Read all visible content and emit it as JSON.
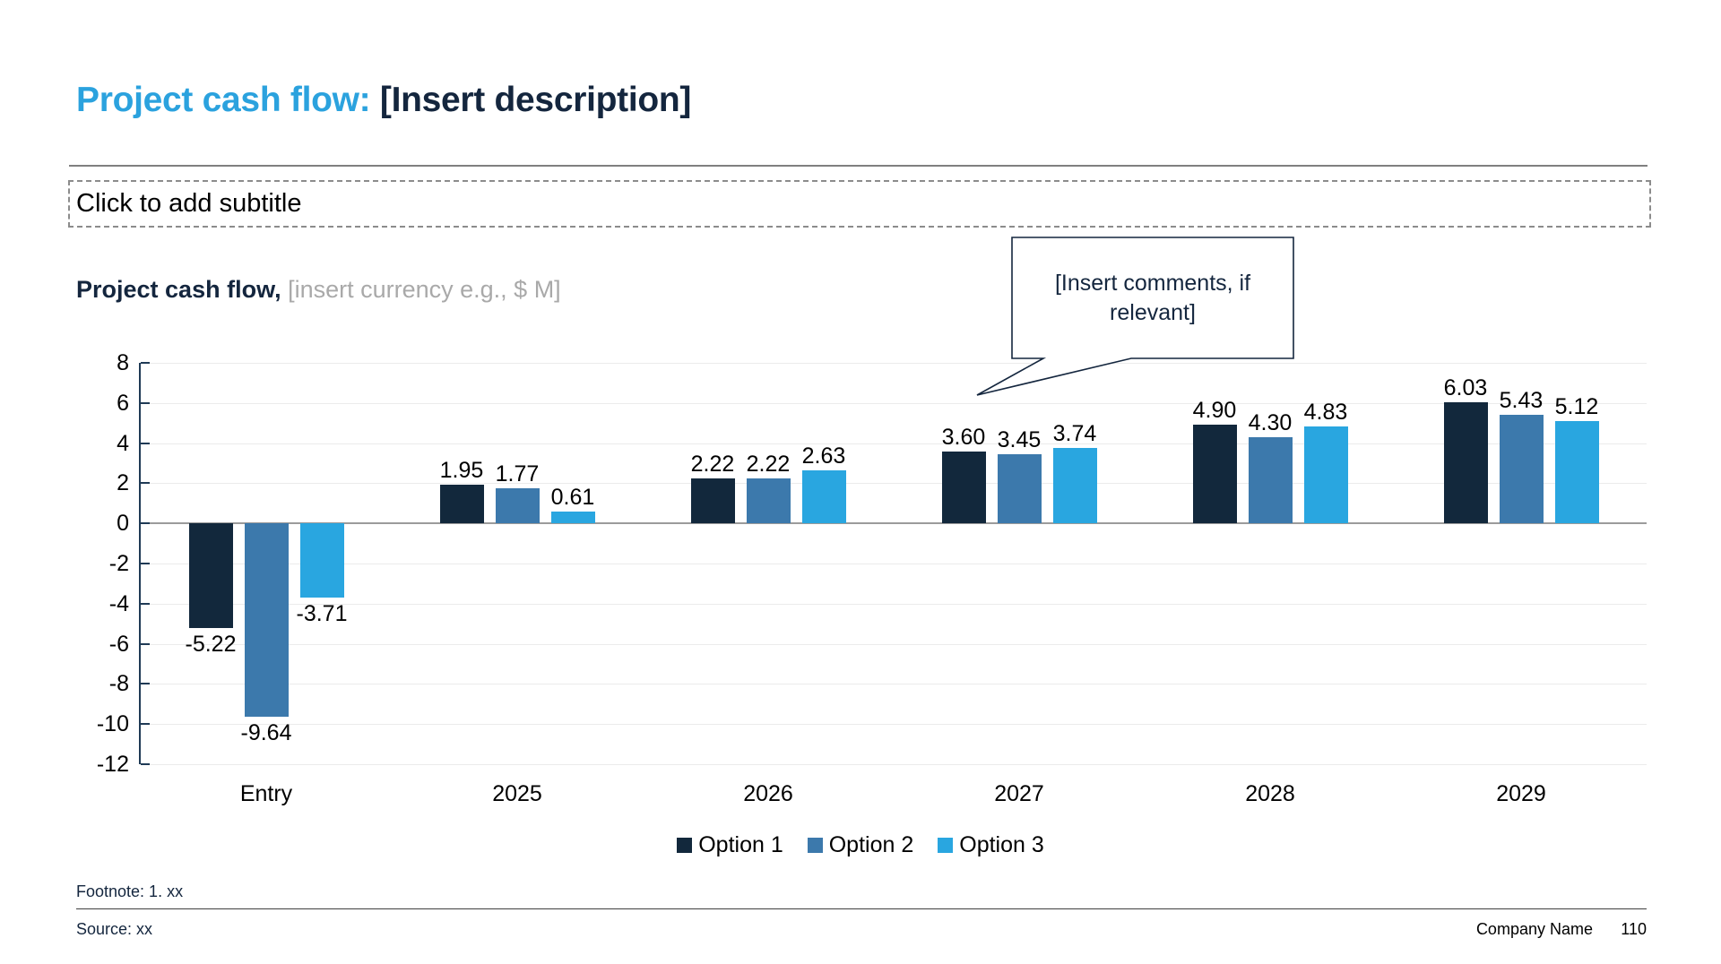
{
  "slide": {
    "title": {
      "highlight": "Project cash flow:",
      "rest": " [Insert description]"
    },
    "subtitle_placeholder": "Click to add subtitle",
    "chart_heading": {
      "bold": "Project cash flow,",
      "muted": " [insert currency e.g., $ M]"
    },
    "callout_text": "[Insert comments, if relevant]",
    "footer": {
      "footnote": "Footnote: 1. xx",
      "source": "Source: xx",
      "company": "Company Name",
      "page": "110"
    }
  },
  "chart_data": {
    "type": "bar",
    "title": "Project cash flow, [insert currency e.g., $ M]",
    "categories": [
      "Entry",
      "2025",
      "2026",
      "2027",
      "2028",
      "2029"
    ],
    "series": [
      {
        "name": "Option 1",
        "color": "#12283C",
        "values": [
          -5.22,
          1.95,
          2.22,
          3.6,
          4.9,
          6.03
        ]
      },
      {
        "name": "Option 2",
        "color": "#3C79AC",
        "values": [
          -9.64,
          1.77,
          2.22,
          3.45,
          4.3,
          5.43
        ]
      },
      {
        "name": "Option 3",
        "color": "#29A6E0",
        "values": [
          -3.71,
          0.61,
          2.63,
          3.74,
          4.83,
          5.12
        ]
      }
    ],
    "ylim": [
      -12,
      8
    ],
    "ytick_step": 2,
    "value_label_decimals": 2,
    "grid": true,
    "legend_position": "bottom",
    "annotation": "[Insert comments, if relevant]"
  }
}
